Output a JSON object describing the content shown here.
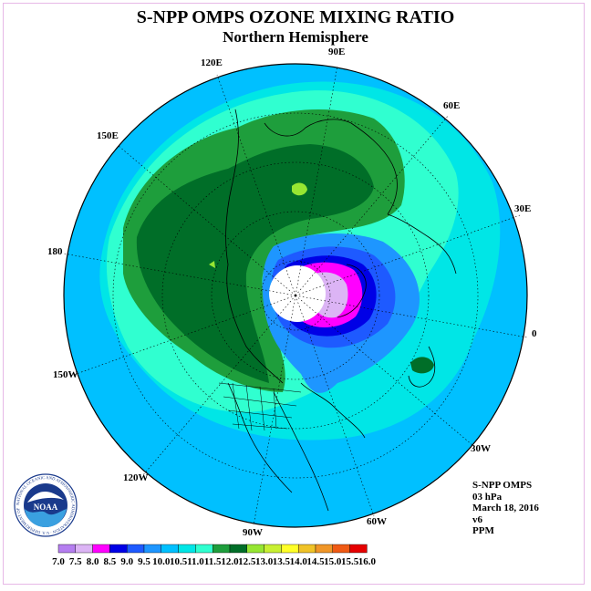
{
  "title": "S-NPP OMPS OZONE MIXING RATIO",
  "subtitle": "Northern Hemisphere",
  "longitude_labels": [
    "90E",
    "60E",
    "30E",
    "0",
    "30W",
    "60W",
    "90W",
    "120W",
    "150W",
    "180",
    "150E",
    "120E"
  ],
  "info": {
    "instrument": "S-NPP OMPS",
    "pressure": "03 hPa",
    "date": "March 18, 2016",
    "version": "v6",
    "units": "PPM"
  },
  "logo": {
    "text": "NOAA",
    "ring_text": "NATIONAL OCEANIC AND ATMOSPHERIC ADMINISTRATION · U.S. DEPARTMENT OF COMMERCE"
  },
  "colorbar": {
    "ticks": [
      "7.0",
      "7.5",
      "8.0",
      "8.5",
      "9.0",
      "9.5",
      "10.0",
      "10.5",
      "11.0",
      "11.5",
      "12.0",
      "12.5",
      "13.0",
      "13.5",
      "14.0",
      "14.5",
      "15.0",
      "15.5",
      "16.0"
    ],
    "colors": [
      "#b57ef0",
      "#dcb4f5",
      "#ff00ff",
      "#0000e6",
      "#1e5aff",
      "#1e96ff",
      "#00c0ff",
      "#00e6e6",
      "#30ffd0",
      "#1e9e3c",
      "#006e28",
      "#96e632",
      "#c8f032",
      "#ffff28",
      "#f0c328",
      "#f09628",
      "#f05a14",
      "#e60000",
      "#8c5032"
    ],
    "levels": [
      7.0,
      7.5,
      8.0,
      8.5,
      9.0,
      9.5,
      10.0,
      10.5,
      11.0,
      11.5,
      12.0,
      12.5,
      13.0,
      13.5,
      14.0,
      14.5,
      15.0,
      15.5,
      16.0
    ]
  },
  "field_colors": {
    "level_9_5": "#1e96ff",
    "level_10_0": "#00c0ff",
    "level_10_5": "#00e6e6",
    "level_11_0": "#30ffd0",
    "level_11_5": "#1e9e3c",
    "level_12_0": "#006e28",
    "level_12_5": "#96e632",
    "level_9_0": "#1e5aff",
    "level_8_5": "#0000e6",
    "level_8_0": "#ff00ff",
    "level_7_5": "#dcb4f5",
    "no_data": "#ffffff"
  }
}
